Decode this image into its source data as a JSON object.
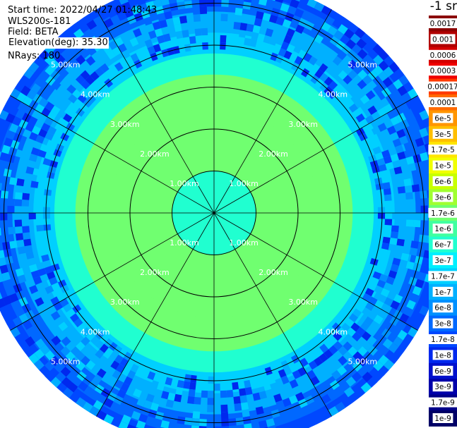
{
  "header": {
    "start_time": "Start time: 2022/04/27 01:48:43",
    "instrument": "WLS200s-181",
    "field": "Field: BETA",
    "elevation": "Elevation(deg): 35.30",
    "nrays": "NRays: 180"
  },
  "colorbar": {
    "units": "-1 sr",
    "labels": [
      "0.0017",
      "0.001",
      "0.0006",
      "0.0003",
      "0.00017",
      "0.0001",
      "6e-5",
      "3e-5",
      "1.7e-5",
      "1e-5",
      "6e-6",
      "3e-6",
      "1.7e-6",
      "1e-6",
      "6e-7",
      "3e-7",
      "1.7e-7",
      "1e-7",
      "6e-8",
      "3e-8",
      "1.7e-8",
      "1e-8",
      "6e-9",
      "3e-9",
      "1.7e-9",
      "1e-9"
    ],
    "colors": [
      "#8b0000",
      "#b00000",
      "#d40000",
      "#f00000",
      "#ff3a00",
      "#ff6a00",
      "#ff9500",
      "#ffbf00",
      "#ffe600",
      "#f0ff00",
      "#c8ff00",
      "#a0ff30",
      "#70ff70",
      "#40ffa0",
      "#20ffd0",
      "#00f0ff",
      "#00d0ff",
      "#00b0ff",
      "#0090ff",
      "#0068ff",
      "#0048ff",
      "#0028ee",
      "#0010cc",
      "#0000aa",
      "#000088",
      "#000066"
    ]
  },
  "chart_data": {
    "type": "ppi",
    "field": "BETA",
    "units": "-1 sr",
    "scale": "log",
    "range_rings_km": [
      1,
      2,
      3,
      4,
      5
    ],
    "ring_labels": [
      "1.00km",
      "2.00km",
      "3.00km",
      "4.00km",
      "5.00km"
    ],
    "spokes_deg": [
      0,
      30,
      60,
      90,
      120,
      150,
      180,
      210,
      240,
      270,
      300,
      330
    ],
    "max_range_km": 5.6,
    "radial_profile": [
      {
        "range_km": 0.0,
        "beta": "6e-7"
      },
      {
        "range_km": 1.0,
        "beta": "1.7e-6"
      },
      {
        "range_km": 2.5,
        "beta": "1.7e-6"
      },
      {
        "range_km": 3.3,
        "beta": "6e-7"
      },
      {
        "range_km": 3.8,
        "beta": "1.7e-7"
      },
      {
        "range_km": 4.3,
        "beta": "1e-7"
      },
      {
        "range_km": 4.8,
        "beta": "3e-8"
      },
      {
        "range_km": 5.3,
        "beta": "1.7e-8"
      }
    ]
  }
}
